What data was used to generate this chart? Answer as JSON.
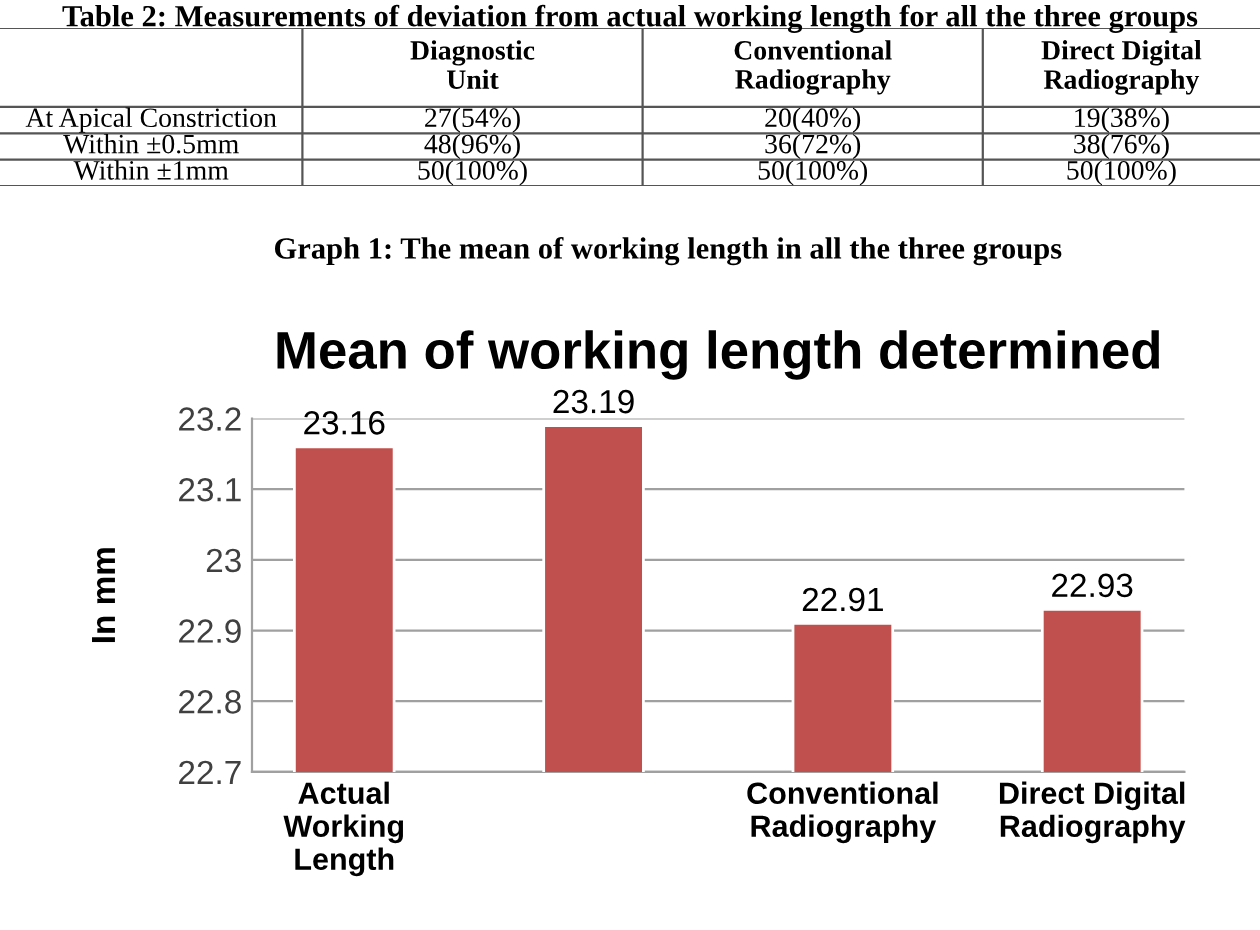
{
  "chart_data": [
    {
      "type": "other",
      "title": "Table 2: Measurements of deviation from actual working length for all the three groups",
      "categories": [
        null,
        "Diagnostic\nUnit",
        "Conventional\nRadiography",
        "Direct Digital\nRadiography"
      ],
      "y_categories": [
        "At Apical Constriction",
        "Within ±0.5mm",
        "Within ±1mm"
      ],
      "cell_labels": [
        [
          "27(54%)",
          "20(40%)",
          "19(38%)"
        ],
        [
          "48(96%)",
          "36(72%)",
          "38(76%)"
        ],
        [
          "50(100%)",
          "50(100%)",
          "50(100%)"
        ]
      ]
    },
    {
      "type": "bar",
      "title": "Mean of working length determined",
      "annotations": [
        "Graph 1: The mean of working length in all the three groups"
      ],
      "ylabel": "In mm",
      "categories": [
        "Actual\nWorking\nLength",
        null,
        "Conventional\nRadiography",
        "Direct Digital\nRadiography"
      ],
      "values": [
        23.16,
        23.19,
        22.91,
        22.93
      ],
      "color": "#c0504d",
      "ylim": [
        22.7,
        23.2
      ],
      "yticks": [
        22.7,
        22.8,
        22.9,
        23,
        23.1,
        23.2
      ],
      "grid": "y",
      "data_labels": true
    }
  ]
}
